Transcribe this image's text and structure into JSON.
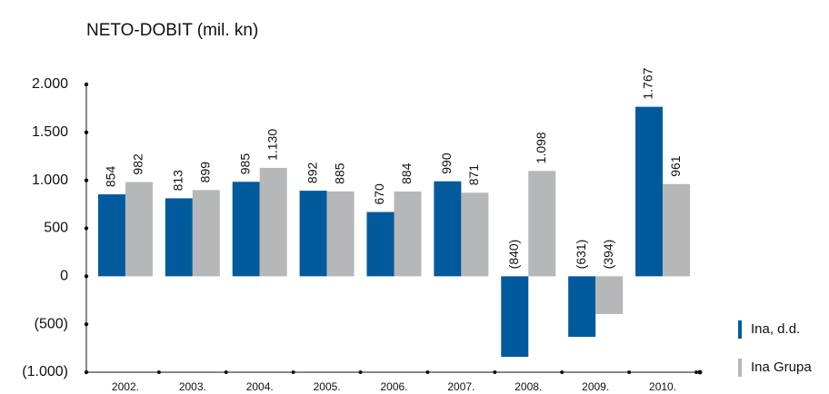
{
  "chart_data": {
    "type": "bar",
    "title": "NETO-DOBIT (mil. kn)",
    "categories": [
      "2002.",
      "2003.",
      "2004.",
      "2005.",
      "2006.",
      "2007.",
      "2008.",
      "2009.",
      "2010."
    ],
    "series": [
      {
        "name": "Ina, d.d.",
        "color": "#005a9c",
        "values": [
          854,
          813,
          985,
          892,
          670,
          990,
          -840,
          -631,
          1767
        ],
        "value_labels": [
          "854",
          "813",
          "985",
          "892",
          "670",
          "990",
          "(840)",
          "(631)",
          "1.767"
        ]
      },
      {
        "name": "Ina Grupa",
        "color": "#b5b7b9",
        "values": [
          982,
          899,
          1130,
          885,
          884,
          871,
          1098,
          -394,
          961
        ],
        "value_labels": [
          "982",
          "899",
          "1.130",
          "885",
          "884",
          "871",
          "1.098",
          "(394)",
          "961"
        ]
      }
    ],
    "ylim": [
      -1000,
      2000
    ],
    "yticks": [
      {
        "value": -1000,
        "label": "(1.000)"
      },
      {
        "value": -500,
        "label": "(500)"
      },
      0,
      500,
      {
        "value": 1000,
        "label": "1.000"
      },
      {
        "value": 1500,
        "label": "1.500"
      },
      {
        "value": 2000,
        "label": "2.000"
      }
    ],
    "legend": "lower right"
  }
}
